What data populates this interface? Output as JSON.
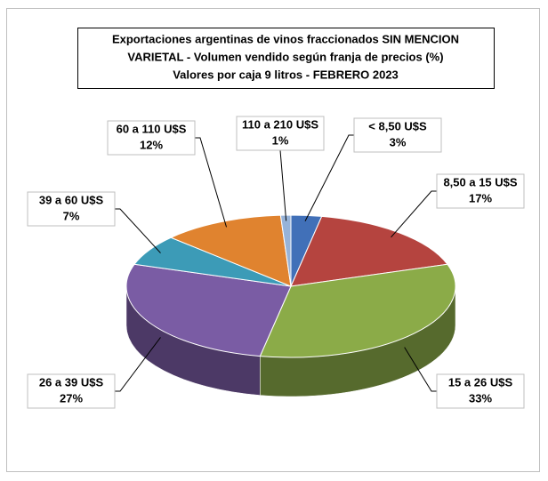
{
  "chart_data": {
    "type": "pie",
    "title": [
      "Exportaciones argentinas de vinos fraccionados SIN MENCION",
      "VARIETAL - Volumen vendido según franja de precios (%)",
      "Valores por caja 9 litros - FEBRERO 2023"
    ],
    "categories": [
      "< 8,50 U$S",
      "8,50 a 15 U$S",
      "15 a 26 U$S",
      "26 a 39 U$S",
      "39 a 60 U$S",
      "60 a 110 U$S",
      "110 a 210 U$S"
    ],
    "values": [
      3,
      17,
      33,
      27,
      7,
      12,
      1
    ],
    "value_labels": [
      "3%",
      "17%",
      "33%",
      "27%",
      "7%",
      "12%",
      "1%"
    ],
    "colors": [
      "#4170b8",
      "#b5443f",
      "#8bab48",
      "#7a5ca4",
      "#3c9bb7",
      "#e0832f",
      "#97b3d8"
    ]
  }
}
